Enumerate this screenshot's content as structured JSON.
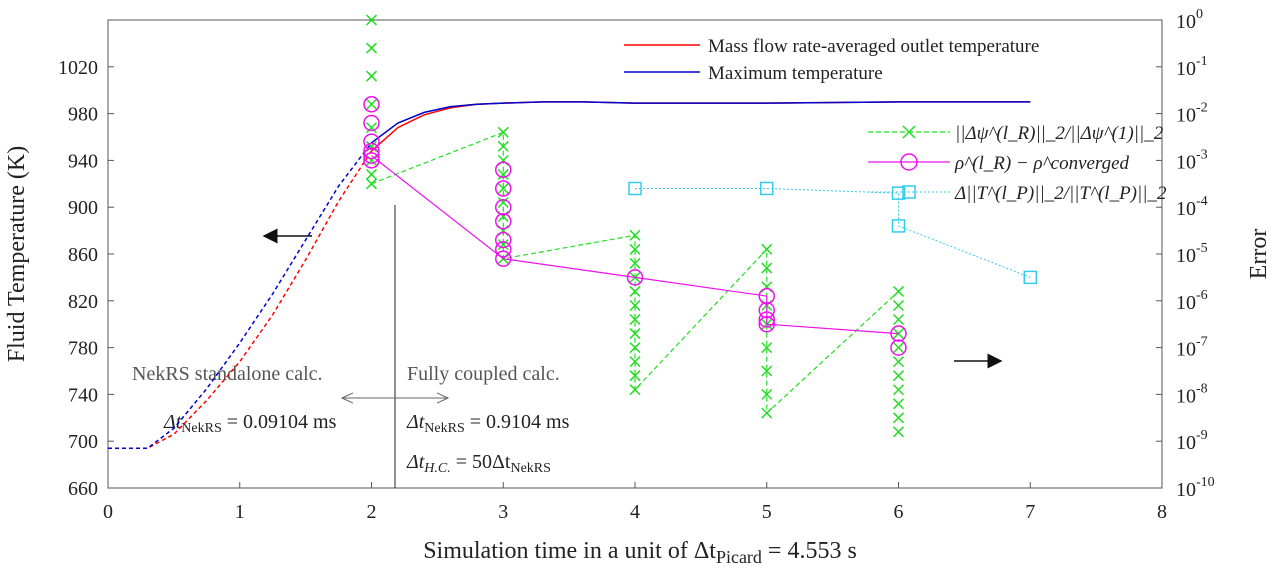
{
  "chart_data": {
    "type": "line",
    "title": "",
    "xlabel": "Simulation time in a unit of Δt",
    "xlabel_sub": "Picard",
    "xlabel_tail": " = 4.553 s",
    "ylabel_left": "Fluid Temperature (K)",
    "ylabel_right": "Error",
    "xlim": [
      0,
      8
    ],
    "ylim_left": [
      660,
      1060
    ],
    "ylim_right_log10": [
      -10,
      0
    ],
    "grid": false,
    "legend_top": {
      "placement": "top-right"
    },
    "legend_right": {
      "placement": "upper-right"
    },
    "x_ticks": [
      "0",
      "1",
      "2",
      "3",
      "4",
      "5",
      "6",
      "7",
      "8"
    ],
    "y_left_ticks": [
      "660",
      "700",
      "740",
      "780",
      "820",
      "860",
      "900",
      "940",
      "980",
      "1020"
    ],
    "y_right_ticks": [
      {
        "base": "10",
        "exp": "-10"
      },
      {
        "base": "10",
        "exp": "-9"
      },
      {
        "base": "10",
        "exp": "-8"
      },
      {
        "base": "10",
        "exp": "-7"
      },
      {
        "base": "10",
        "exp": "-6"
      },
      {
        "base": "10",
        "exp": "-5"
      },
      {
        "base": "10",
        "exp": "-4"
      },
      {
        "base": "10",
        "exp": "-3"
      },
      {
        "base": "10",
        "exp": "-2"
      },
      {
        "base": "10",
        "exp": "-1"
      },
      {
        "base": "10",
        "exp": "0"
      }
    ],
    "series": [
      {
        "name": "Mass flow rate-averaged outlet temperature",
        "axis": "left",
        "color": "#ff0000",
        "x": [
          0.0,
          0.3,
          0.5,
          0.75,
          1.0,
          1.25,
          1.5,
          1.75,
          2.0,
          2.2,
          2.4,
          2.6,
          2.8,
          3.0,
          3.3,
          3.6,
          4.0,
          5.0,
          6.0,
          7.0
        ],
        "y": [
          694,
          694,
          706,
          735,
          768,
          808,
          855,
          905,
          948,
          968,
          979,
          985,
          988,
          989,
          990,
          990,
          989,
          989,
          990,
          990
        ]
      },
      {
        "name": "Maximum temperature",
        "axis": "left",
        "color": "#0000cc",
        "x": [
          0.0,
          0.3,
          0.5,
          0.75,
          1.0,
          1.25,
          1.5,
          1.75,
          2.0,
          2.2,
          2.4,
          2.6,
          2.8,
          3.0,
          3.3,
          3.6,
          4.0,
          5.0,
          6.0,
          7.0
        ],
        "y": [
          694,
          694,
          711,
          745,
          784,
          826,
          872,
          918,
          955,
          972,
          981,
          986,
          988,
          989,
          990,
          990,
          989,
          989,
          990,
          990
        ]
      },
      {
        "name": "||Δψ^(l_R)||_2/||Δψ^(1)||_2",
        "axis": "right",
        "color": "#22dd22",
        "marker": "x",
        "points": [
          [
            2,
            0.0
          ],
          [
            2,
            -0.6
          ],
          [
            2,
            -1.2
          ],
          [
            2,
            -1.8
          ],
          [
            2,
            -2.3
          ],
          [
            2,
            -2.7
          ],
          [
            2,
            -3.0
          ],
          [
            2,
            -3.3
          ],
          [
            2,
            -3.5
          ],
          [
            3,
            -2.4
          ],
          [
            3,
            -2.7
          ],
          [
            3,
            -3.0
          ],
          [
            3,
            -3.3
          ],
          [
            3,
            -3.6
          ],
          [
            3,
            -3.9
          ],
          [
            3,
            -4.2
          ],
          [
            3,
            -4.5
          ],
          [
            3,
            -4.8
          ],
          [
            3,
            -5.1
          ],
          [
            4,
            -4.6
          ],
          [
            4,
            -4.9
          ],
          [
            4,
            -5.2
          ],
          [
            4,
            -5.5
          ],
          [
            4,
            -5.8
          ],
          [
            4,
            -6.1
          ],
          [
            4,
            -6.4
          ],
          [
            4,
            -6.7
          ],
          [
            4,
            -7.0
          ],
          [
            4,
            -7.3
          ],
          [
            4,
            -7.6
          ],
          [
            4,
            -7.9
          ],
          [
            5,
            -4.9
          ],
          [
            5,
            -5.3
          ],
          [
            5,
            -5.7
          ],
          [
            5,
            -6.1
          ],
          [
            5,
            -6.5
          ],
          [
            5,
            -7.0
          ],
          [
            5,
            -7.5
          ],
          [
            5,
            -8.0
          ],
          [
            5,
            -8.4
          ],
          [
            6,
            -5.8
          ],
          [
            6,
            -6.1
          ],
          [
            6,
            -6.4
          ],
          [
            6,
            -6.7
          ],
          [
            6,
            -7.0
          ],
          [
            6,
            -7.3
          ],
          [
            6,
            -7.6
          ],
          [
            6,
            -7.9
          ],
          [
            6,
            -8.2
          ],
          [
            6,
            -8.5
          ],
          [
            6,
            -8.8
          ]
        ],
        "line": [
          [
            2,
            -3.5
          ],
          [
            3,
            -2.4
          ],
          [
            3,
            -5.1
          ],
          [
            4,
            -4.6
          ],
          [
            4,
            -7.9
          ],
          [
            5,
            -4.9
          ],
          [
            5,
            -8.4
          ],
          [
            6,
            -5.8
          ]
        ]
      },
      {
        "name": "ρ^(l_R) − ρ^converged",
        "axis": "right",
        "color": "#ee11ee",
        "marker": "circle",
        "points": [
          [
            2,
            -1.8
          ],
          [
            2,
            -2.2
          ],
          [
            2,
            -2.6
          ],
          [
            2,
            -2.8
          ],
          [
            2,
            -3.0
          ],
          [
            2,
            -2.9
          ],
          [
            3,
            -3.2
          ],
          [
            3,
            -3.6
          ],
          [
            3,
            -4.0
          ],
          [
            3,
            -4.3
          ],
          [
            3,
            -4.7
          ],
          [
            3,
            -4.9
          ],
          [
            3,
            -5.1
          ],
          [
            4,
            -5.5
          ],
          [
            5,
            -5.9
          ],
          [
            5,
            -6.2
          ],
          [
            5,
            -6.4
          ],
          [
            5,
            -6.5
          ],
          [
            6,
            -6.7
          ],
          [
            6,
            -7.0
          ]
        ],
        "line": [
          [
            2,
            -2.9
          ],
          [
            3,
            -5.1
          ],
          [
            4,
            -5.5
          ],
          [
            5,
            -5.9
          ],
          [
            5,
            -6.5
          ],
          [
            6,
            -6.7
          ]
        ]
      },
      {
        "name": "Δ||T^(l_P)||_2/||T^(l_P)||_2",
        "axis": "right",
        "color": "#33ccee",
        "marker": "square",
        "points": [
          [
            4,
            -3.6
          ],
          [
            5,
            -3.6
          ],
          [
            6,
            -3.7
          ],
          [
            6,
            -4.4
          ],
          [
            7,
            -5.5
          ]
        ],
        "line": [
          [
            4,
            -3.6
          ],
          [
            5,
            -3.6
          ],
          [
            6,
            -3.7
          ],
          [
            6,
            -4.4
          ],
          [
            7,
            -5.5
          ]
        ]
      }
    ],
    "annotations": {
      "standalone": "NekRS standalone calc.",
      "coupled": "Fully coupled calc.",
      "dt_left_pre": "Δt",
      "dt_left_sub": "NekRS",
      "dt_left_val": " = 0.09104 ms",
      "dt_right_pre": "Δt",
      "dt_right_sub": "NekRS",
      "dt_right_val": " = 0.9104 ms",
      "dthc_pre": "Δt",
      "dthc_sub": "H.C.",
      "dthc_mid": " = 50Δt",
      "dthc_sub2": "NekRS"
    }
  }
}
